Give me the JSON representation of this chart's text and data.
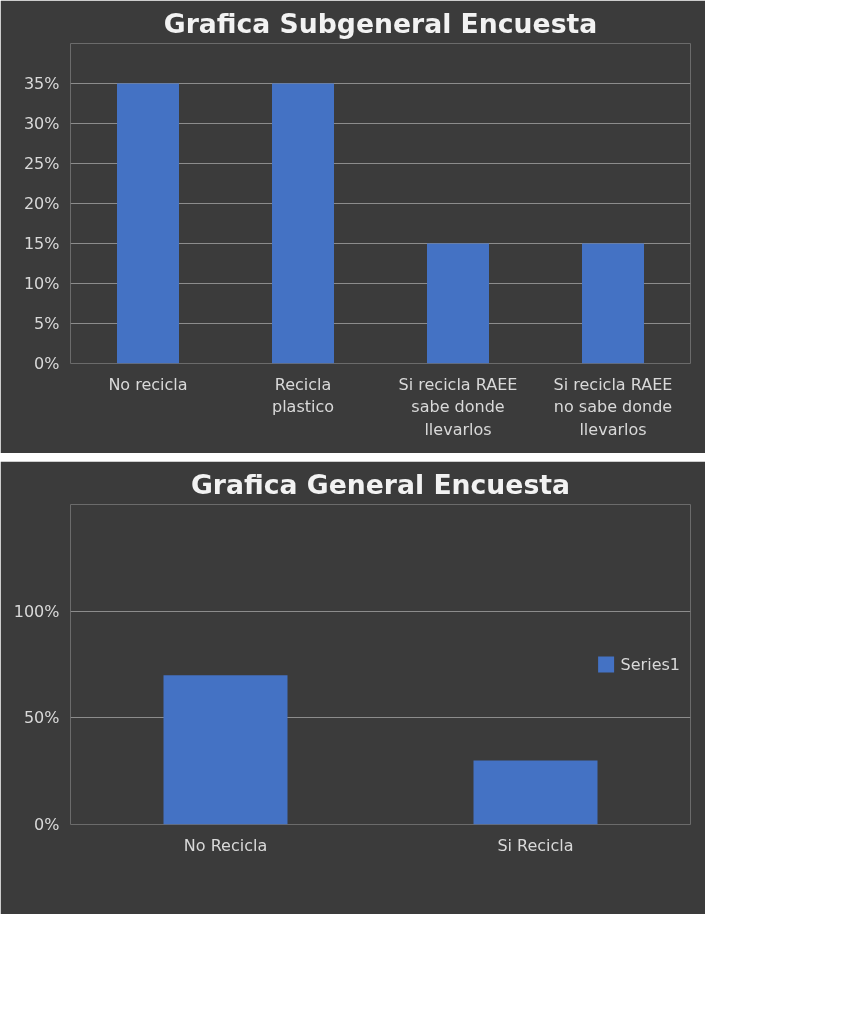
{
  "chart_data": [
    {
      "type": "bar",
      "title": "Grafica Subgeneral Encuesta",
      "categories": [
        "No recicla",
        "Recicla plastico",
        "Si recicla RAEE sabe donde llevarlos",
        "Si recicla RAEE no sabe donde llevarlos"
      ],
      "series": [
        {
          "color": "#4472c4",
          "values": [
            35,
            35,
            15,
            15
          ]
        }
      ],
      "ylim": [
        0,
        40
      ],
      "yticks": [
        {
          "value": 0,
          "label": "0%"
        },
        {
          "value": 5,
          "label": "5%"
        },
        {
          "value": 10,
          "label": "10%"
        },
        {
          "value": 15,
          "label": "15%"
        },
        {
          "value": 20,
          "label": "20%"
        },
        {
          "value": 25,
          "label": "25%"
        },
        {
          "value": 30,
          "label": "30%"
        },
        {
          "value": 35,
          "label": "35%"
        }
      ],
      "grid": "y",
      "legend": false
    },
    {
      "type": "bar",
      "title": "Grafica General Encuesta",
      "categories": [
        "No Recicla",
        "Si Recicla"
      ],
      "series": [
        {
          "name": "Series1",
          "color": "#4472c4",
          "values": [
            70,
            30
          ]
        }
      ],
      "ylim": [
        0,
        150
      ],
      "yticks": [
        {
          "value": 0,
          "label": "0%"
        },
        {
          "value": 50,
          "label": "50%"
        },
        {
          "value": 100,
          "label": "100%"
        }
      ],
      "grid": "y",
      "legend": "right"
    }
  ]
}
